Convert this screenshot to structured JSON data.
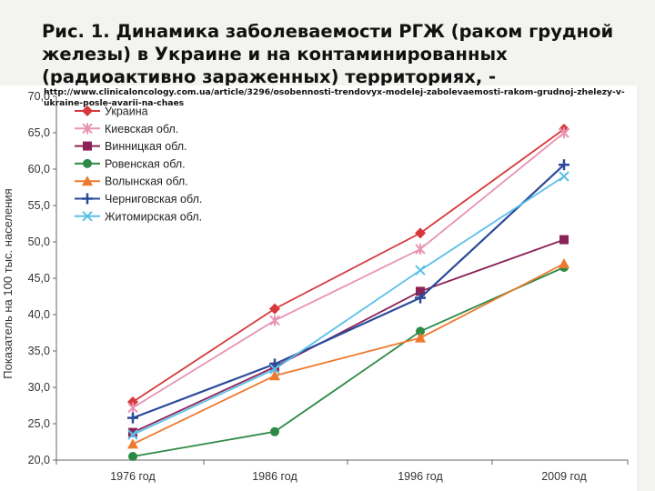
{
  "slide": {
    "title": "Рис. 1. Динамика заболеваемости РГЖ (раком грудной железы) в Украине и на контаминированных (радиоактивно зараженных) территориях, -",
    "source_url": "http://www.clinicaloncology.com.ua/article/3296/osobennosti-trendovyx-modelej-zabolevaemosti-rakom-grudnoj-zhelezy-v-ukraine-posle-avarii-na-chaes"
  },
  "chart_data": {
    "type": "line",
    "categories": [
      "1976 год",
      "1986 год",
      "1996 год",
      "2009 год"
    ],
    "ylabel": "Показатель на 100 тыс. населения",
    "xlabel": "",
    "ylim": [
      20,
      70
    ],
    "yticks": [
      "20,0",
      "25,0",
      "30,0",
      "35,0",
      "40,0",
      "45,0",
      "50,0",
      "55,0",
      "60,0",
      "65,0",
      "70,0"
    ],
    "grid": false,
    "legend_position": "top-left",
    "series": [
      {
        "name": "Украина",
        "color": "#d7393b",
        "marker": "diamond",
        "values": [
          28.0,
          40.8,
          51.2,
          65.5
        ]
      },
      {
        "name": "Киевская обл.",
        "color": "#e893b2",
        "marker": "asterisk",
        "values": [
          27.2,
          39.2,
          49.0,
          65.0
        ]
      },
      {
        "name": "Винницкая обл.",
        "color": "#8b2358",
        "marker": "square",
        "values": [
          23.8,
          32.8,
          43.2,
          50.3
        ]
      },
      {
        "name": "Ровенская обл.",
        "color": "#2d8a45",
        "marker": "circle",
        "values": [
          20.5,
          23.9,
          37.7,
          46.5
        ]
      },
      {
        "name": "Волынская обл.",
        "color": "#ee7a2f",
        "marker": "triangle",
        "values": [
          22.2,
          31.6,
          36.8,
          47.0
        ]
      },
      {
        "name": "Черниговская обл.",
        "color": "#2b4a9a",
        "marker": "plus",
        "values": [
          25.8,
          33.2,
          42.3,
          60.6
        ]
      },
      {
        "name": "Житомирская обл.",
        "color": "#5bc0e8",
        "marker": "x",
        "values": [
          23.5,
          32.5,
          46.1,
          59.0
        ]
      }
    ]
  }
}
